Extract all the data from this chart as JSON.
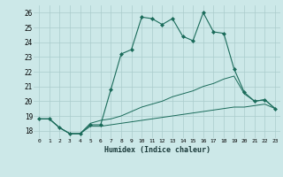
{
  "xlabel": "Humidex (Indice chaleur)",
  "background_color": "#cce8e8",
  "grid_color": "#aacccc",
  "line_color": "#1a6b5a",
  "xlim": [
    -0.5,
    23.5
  ],
  "ylim": [
    17.5,
    26.5
  ],
  "yticks": [
    18,
    19,
    20,
    21,
    22,
    23,
    24,
    25,
    26
  ],
  "xticks": [
    0,
    1,
    2,
    3,
    4,
    5,
    6,
    7,
    8,
    9,
    10,
    11,
    12,
    13,
    14,
    15,
    16,
    17,
    18,
    19,
    20,
    21,
    22,
    23
  ],
  "series1_x": [
    0,
    1,
    2,
    3,
    4,
    5,
    6,
    7,
    8,
    9,
    10,
    11,
    12,
    13,
    14,
    15,
    16,
    17,
    18,
    19,
    20,
    21,
    22,
    23
  ],
  "series1_y": [
    18.8,
    18.8,
    18.2,
    17.8,
    17.8,
    18.4,
    18.4,
    20.8,
    23.2,
    23.5,
    25.7,
    25.6,
    25.2,
    25.6,
    24.4,
    24.1,
    26.0,
    24.7,
    24.6,
    22.2,
    20.6,
    20.0,
    20.1,
    19.5
  ],
  "series2_x": [
    0,
    1,
    2,
    3,
    4,
    5,
    6,
    7,
    8,
    9,
    10,
    11,
    12,
    13,
    14,
    15,
    16,
    17,
    18,
    19,
    20,
    21,
    22,
    23
  ],
  "series2_y": [
    18.8,
    18.8,
    18.2,
    17.8,
    17.8,
    18.5,
    18.7,
    18.8,
    19.0,
    19.3,
    19.6,
    19.8,
    20.0,
    20.3,
    20.5,
    20.7,
    21.0,
    21.2,
    21.5,
    21.7,
    20.5,
    20.0,
    20.1,
    19.5
  ],
  "series3_x": [
    0,
    1,
    2,
    3,
    4,
    5,
    6,
    7,
    8,
    9,
    10,
    11,
    12,
    13,
    14,
    15,
    16,
    17,
    18,
    19,
    20,
    21,
    22,
    23
  ],
  "series3_y": [
    18.8,
    18.8,
    18.2,
    17.8,
    17.8,
    18.3,
    18.3,
    18.4,
    18.5,
    18.6,
    18.7,
    18.8,
    18.9,
    19.0,
    19.1,
    19.2,
    19.3,
    19.4,
    19.5,
    19.6,
    19.6,
    19.7,
    19.8,
    19.5
  ]
}
